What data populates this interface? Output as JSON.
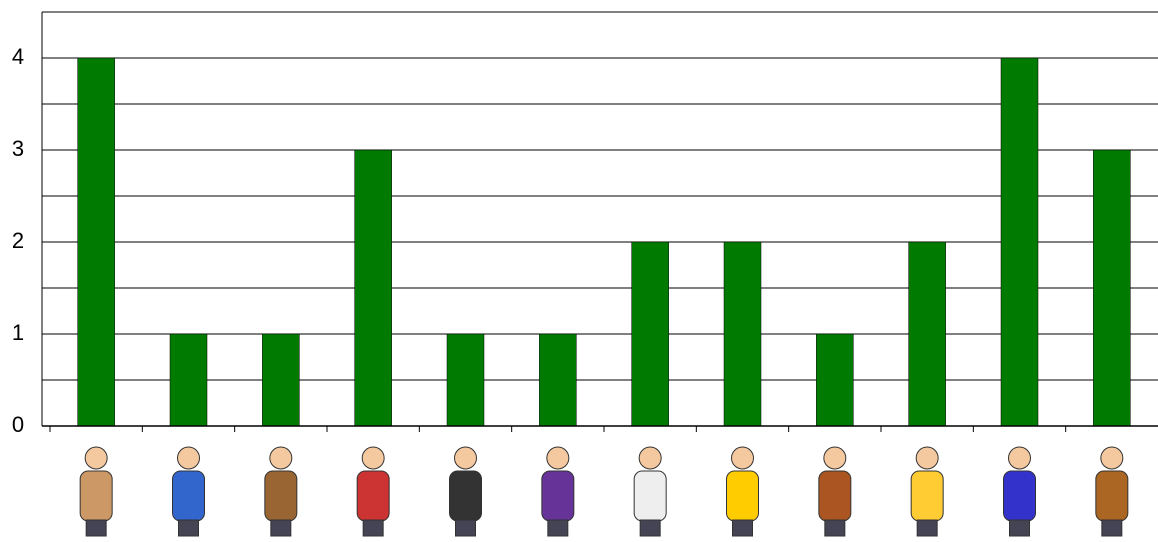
{
  "chart_data": {
    "type": "bar",
    "categories": [
      null,
      null,
      null,
      null,
      null,
      null,
      null,
      null,
      null,
      null,
      null,
      null
    ],
    "values": [
      4,
      1,
      1,
      3,
      1,
      1,
      2,
      2,
      1,
      2,
      4,
      3
    ],
    "color": "#007a00",
    "ylim": [
      0,
      4.5
    ],
    "yticks": [
      0,
      1,
      2,
      3,
      4
    ],
    "minor_yticks": [
      0.5,
      1.5,
      2.5,
      3.5,
      4.5
    ],
    "grid": true
  }
}
